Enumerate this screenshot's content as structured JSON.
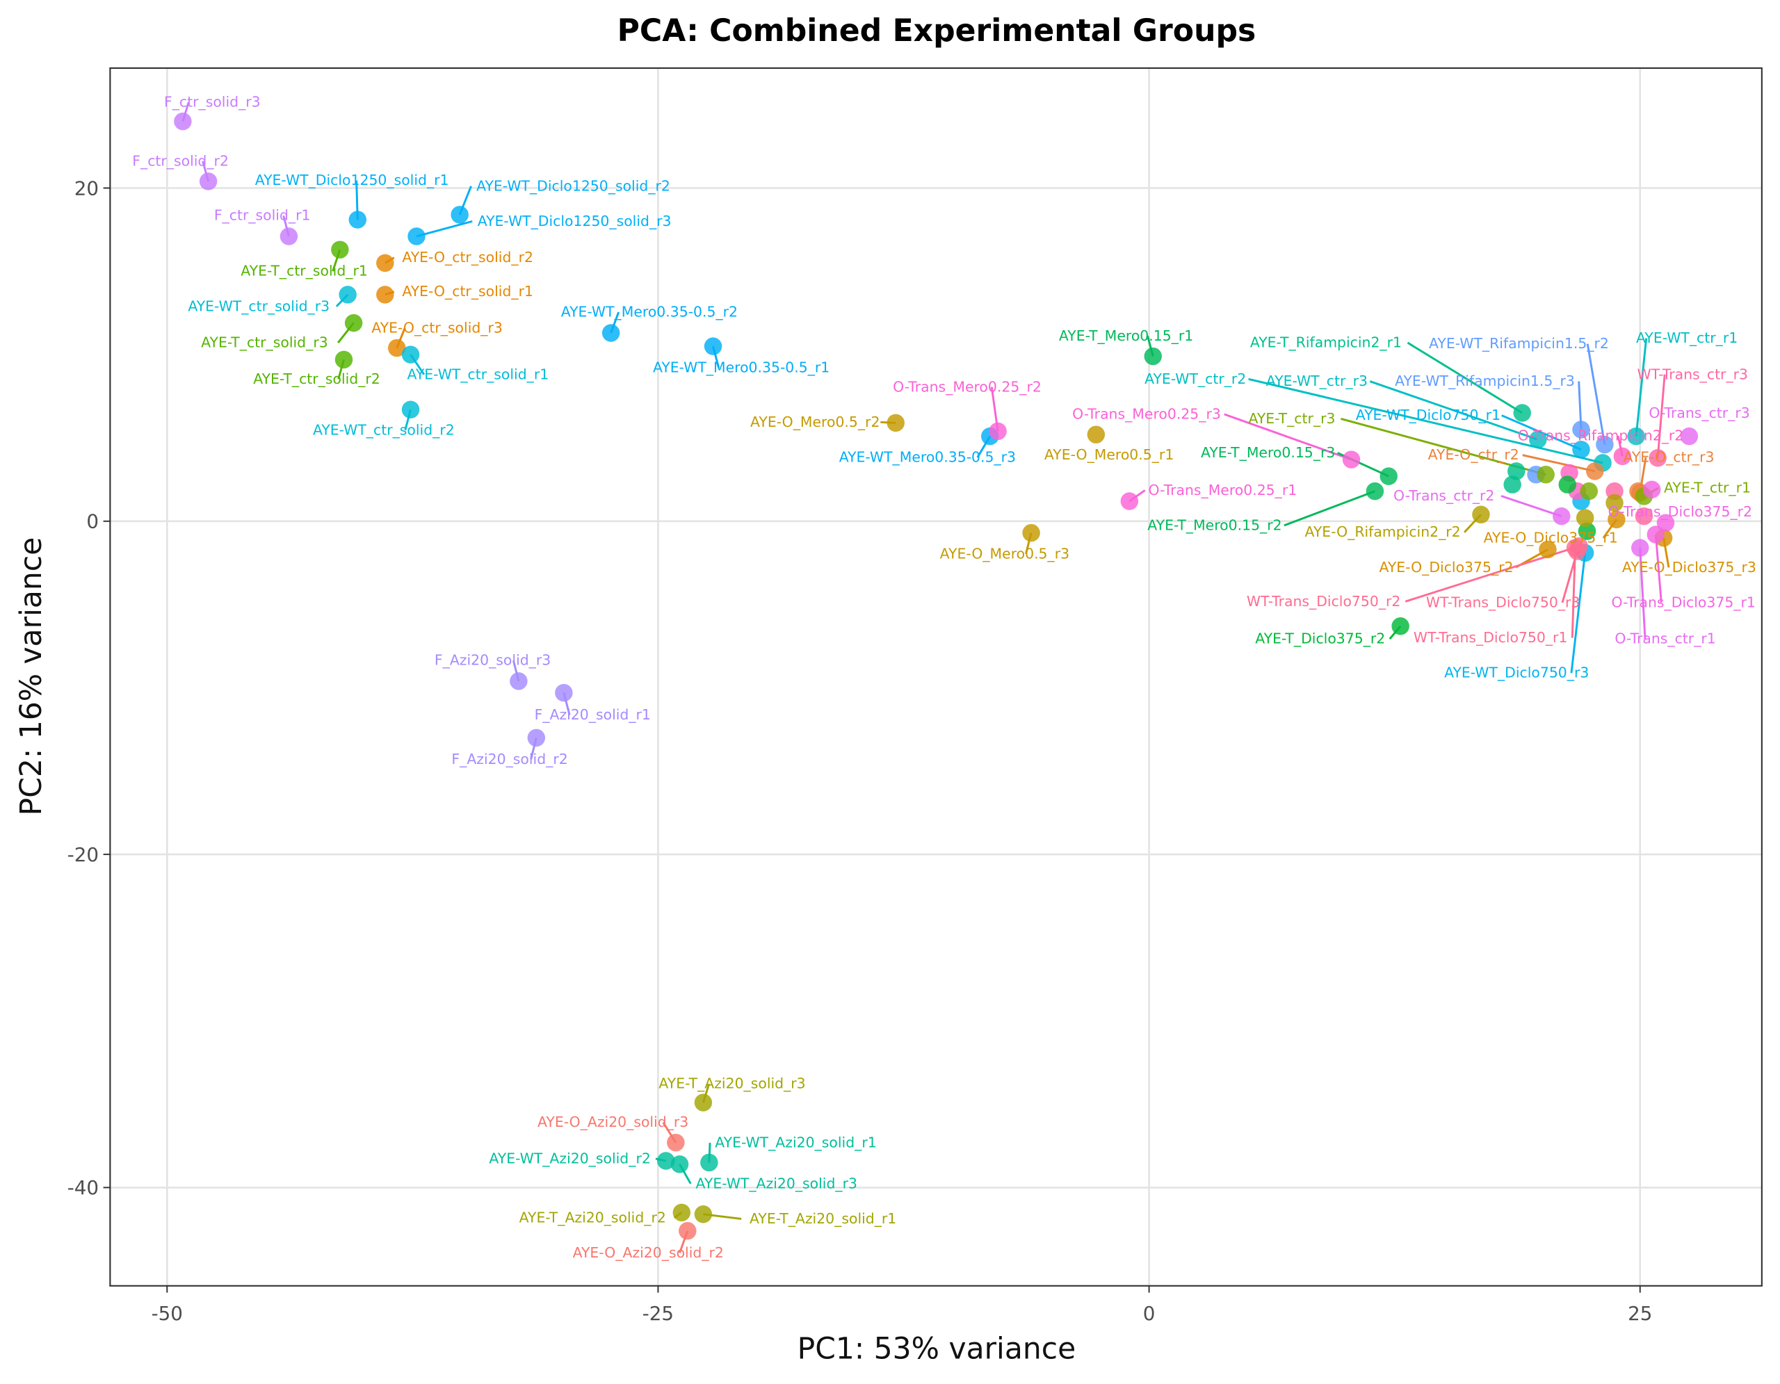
{
  "chart_data": {
    "type": "scatter",
    "title": "PCA: Combined Experimental Groups",
    "xlabel": "PC1: 53% variance",
    "ylabel": "PC2: 16% variance",
    "xlim": [
      -52.9,
      31.2
    ],
    "ylim": [
      -45.9,
      27.2
    ],
    "xticks": [
      -50,
      -25,
      0,
      25
    ],
    "xtick_labels": [
      "-50",
      "-25",
      "0",
      "25"
    ],
    "yticks": [
      20,
      0,
      -20,
      -40
    ],
    "ytick_labels": [
      "20",
      "0",
      "-20",
      "-40"
    ],
    "grid": true,
    "legend": "none",
    "points": [
      {
        "label": "F_ctr_solid_r3",
        "x": -49.2,
        "y": 24.0,
        "color": "#c77cff"
      },
      {
        "label": "F_ctr_solid_r2",
        "x": -47.9,
        "y": 20.4,
        "color": "#c77cff"
      },
      {
        "label": "F_ctr_solid_r1",
        "x": -43.8,
        "y": 17.1,
        "color": "#c77cff"
      },
      {
        "label": "AYE-WT_Diclo1250_solid_r1",
        "x": -40.3,
        "y": 18.1,
        "color": "#00b0f6"
      },
      {
        "label": "AYE-WT_Diclo1250_solid_r2",
        "x": -35.1,
        "y": 18.4,
        "color": "#00b0f6"
      },
      {
        "label": "AYE-WT_Diclo1250_solid_r3",
        "x": -37.3,
        "y": 17.1,
        "color": "#00b0f6"
      },
      {
        "label": "AYE-T_ctr_solid_r1",
        "x": -41.2,
        "y": 16.3,
        "color": "#53b400"
      },
      {
        "label": "AYE-T_ctr_solid_r3",
        "x": -40.5,
        "y": 11.9,
        "color": "#53b400"
      },
      {
        "label": "AYE-T_ctr_solid_r2",
        "x": -41.0,
        "y": 9.7,
        "color": "#53b400"
      },
      {
        "label": "AYE-O_ctr_solid_r2",
        "x": -38.9,
        "y": 15.5,
        "color": "#e58700"
      },
      {
        "label": "AYE-O_ctr_solid_r1",
        "x": -38.9,
        "y": 13.6,
        "color": "#e58700"
      },
      {
        "label": "AYE-O_ctr_solid_r3",
        "x": -38.3,
        "y": 10.4,
        "color": "#e58700"
      },
      {
        "label": "AYE-WT_ctr_solid_r3",
        "x": -40.8,
        "y": 13.6,
        "color": "#00bcd8"
      },
      {
        "label": "AYE-WT_ctr_solid_r1",
        "x": -37.6,
        "y": 10.0,
        "color": "#00bcd8"
      },
      {
        "label": "AYE-WT_ctr_solid_r2",
        "x": -37.6,
        "y": 6.7,
        "color": "#00bcd8"
      },
      {
        "label": "AYE-WT_Mero0.35-0.5_r2",
        "x": -27.4,
        "y": 11.3,
        "color": "#00aef7"
      },
      {
        "label": "AYE-WT_Mero0.35-0.5_r1",
        "x": -22.2,
        "y": 10.5,
        "color": "#00aef7"
      },
      {
        "label": "AYE-WT_Mero0.35-0.5_r3",
        "x": -8.1,
        "y": 5.1,
        "color": "#00aef7"
      },
      {
        "label": "AYE-O_Mero0.5_r2",
        "x": -12.9,
        "y": 5.9,
        "color": "#c49a00"
      },
      {
        "label": "AYE-O_Mero0.5_r1",
        "x": -2.7,
        "y": 5.2,
        "color": "#c49a00"
      },
      {
        "label": "AYE-O_Mero0.5_r3",
        "x": -6.0,
        "y": -0.7,
        "color": "#c49a00"
      },
      {
        "label": "O-Trans_Mero0.25_r2",
        "x": -7.7,
        "y": 5.4,
        "color": "#fb61d7"
      },
      {
        "label": "O-Trans_Mero0.25_r3",
        "x": 10.3,
        "y": 3.7,
        "color": "#fb61d7"
      },
      {
        "label": "O-Trans_Mero0.25_r1",
        "x": -1.0,
        "y": 1.2,
        "color": "#fb61d7"
      },
      {
        "label": "AYE-T_Mero0.15_r1",
        "x": 0.2,
        "y": 9.9,
        "color": "#00b95a"
      },
      {
        "label": "AYE-T_Mero0.15_r3",
        "x": 12.2,
        "y": 2.7,
        "color": "#00b95a"
      },
      {
        "label": "AYE-T_Mero0.15_r2",
        "x": 11.5,
        "y": 1.8,
        "color": "#00b95a"
      },
      {
        "label": "F_Azi20_solid_r3",
        "x": -32.1,
        "y": -9.6,
        "color": "#a58aff"
      },
      {
        "label": "F_Azi20_solid_r1",
        "x": -29.8,
        "y": -10.3,
        "color": "#a58aff"
      },
      {
        "label": "F_Azi20_solid_r2",
        "x": -31.2,
        "y": -13.0,
        "color": "#a58aff"
      },
      {
        "label": "AYE-T_Rifampicin2_r1",
        "x": 19.0,
        "y": 6.5,
        "color": "#00c08b"
      },
      {
        "label": "",
        "x": 18.7,
        "y": 3.0,
        "color": "#00c08b"
      },
      {
        "label": "",
        "x": 18.5,
        "y": 2.2,
        "color": "#00c08b"
      },
      {
        "label": "AYE-WT_Rifampicin1.5_r2",
        "x": 23.2,
        "y": 4.6,
        "color": "#619cff"
      },
      {
        "label": "AYE-WT_Rifampicin1.5_r3",
        "x": 22.0,
        "y": 5.5,
        "color": "#619cff"
      },
      {
        "label": "",
        "x": 19.7,
        "y": 2.8,
        "color": "#619cff"
      },
      {
        "label": "AYE-WT_ctr_r1",
        "x": 24.8,
        "y": 5.1,
        "color": "#00bfc4"
      },
      {
        "label": "AYE-WT_ctr_r2",
        "x": 23.1,
        "y": 3.5,
        "color": "#00bfc4"
      },
      {
        "label": "AYE-WT_ctr_r3",
        "x": 19.8,
        "y": 4.9,
        "color": "#00bfc4"
      },
      {
        "label": "AYE-WT_Diclo750_r1",
        "x": 22.0,
        "y": 4.3,
        "color": "#00b4ef"
      },
      {
        "label": "",
        "x": 22.0,
        "y": 1.2,
        "color": "#00b4ef"
      },
      {
        "label": "AYE-WT_Diclo750_r3",
        "x": 22.2,
        "y": -1.9,
        "color": "#00b4ef"
      },
      {
        "label": "O-Trans_Rifampicin2_r2",
        "x": 24.1,
        "y": 3.9,
        "color": "#ff61c3"
      },
      {
        "label": "",
        "x": 21.4,
        "y": 2.9,
        "color": "#ff61c3"
      },
      {
        "label": "",
        "x": 21.8,
        "y": 1.8,
        "color": "#ff61c3"
      },
      {
        "label": "WT-Trans_ctr_r3",
        "x": 25.9,
        "y": 3.8,
        "color": "#ff67a4"
      },
      {
        "label": "",
        "x": 23.7,
        "y": 1.8,
        "color": "#ff67a4"
      },
      {
        "label": "",
        "x": 25.2,
        "y": 0.3,
        "color": "#ff67a4"
      },
      {
        "label": "O-Trans_ctr_r3",
        "x": 27.5,
        "y": 5.1,
        "color": "#e76bf3"
      },
      {
        "label": "O-Trans_ctr_r2",
        "x": 21.0,
        "y": 0.3,
        "color": "#e76bf3"
      },
      {
        "label": "O-Trans_ctr_r1",
        "x": 25.0,
        "y": -1.6,
        "color": "#e76bf3"
      },
      {
        "label": "AYE-O_ctr_r2",
        "x": 22.7,
        "y": 3.0,
        "color": "#ec8239"
      },
      {
        "label": "AYE-O_ctr_r3",
        "x": 25.0,
        "y": 1.7,
        "color": "#ec8239"
      },
      {
        "label": "",
        "x": 24.9,
        "y": 1.8,
        "color": "#ec8239"
      },
      {
        "label": "AYE-T_ctr_r3",
        "x": 20.2,
        "y": 2.8,
        "color": "#7cae00"
      },
      {
        "label": "",
        "x": 22.4,
        "y": 1.8,
        "color": "#7cae00"
      },
      {
        "label": "AYE-T_ctr_r1",
        "x": 25.2,
        "y": 1.5,
        "color": "#7cae00"
      },
      {
        "label": "",
        "x": 21.3,
        "y": 2.2,
        "color": "#00ba38"
      },
      {
        "label": "AYE-T_Diclo375_r2",
        "x": 12.8,
        "y": -6.3,
        "color": "#00ba38"
      },
      {
        "label": "",
        "x": 22.3,
        "y": -0.6,
        "color": "#00ba38"
      },
      {
        "label": "AYE-O_Rifampicin2_r2",
        "x": 16.9,
        "y": 0.4,
        "color": "#b3a000"
      },
      {
        "label": "",
        "x": 22.2,
        "y": 0.2,
        "color": "#b3a000"
      },
      {
        "label": "",
        "x": 23.7,
        "y": 1.1,
        "color": "#b3a000"
      },
      {
        "label": "AYE-O_Diclo375_r1",
        "x": 23.8,
        "y": 0.1,
        "color": "#d89000"
      },
      {
        "label": "AYE-O_Diclo375_r2",
        "x": 20.3,
        "y": -1.7,
        "color": "#d89000"
      },
      {
        "label": "AYE-O_Diclo375_r3",
        "x": 26.2,
        "y": -1.0,
        "color": "#d89000"
      },
      {
        "label": "WT-Trans_Diclo750_r1",
        "x": 21.7,
        "y": -1.6,
        "color": "#ff6c91"
      },
      {
        "label": "WT-Trans_Diclo750_r2",
        "x": 21.9,
        "y": -1.5,
        "color": "#ff6c91"
      },
      {
        "label": "WT-Trans_Diclo750_r3",
        "x": 21.8,
        "y": -1.8,
        "color": "#ff6c91"
      },
      {
        "label": "O-Trans_Diclo375_r2",
        "x": 26.3,
        "y": -0.1,
        "color": "#f564e3"
      },
      {
        "label": "O-Trans_Diclo375_r1",
        "x": 25.8,
        "y": -0.8,
        "color": "#f564e3"
      },
      {
        "label": "",
        "x": 25.6,
        "y": 1.9,
        "color": "#f564e3"
      },
      {
        "label": "AYE-T_Azi20_solid_r3",
        "x": -22.7,
        "y": -34.9,
        "color": "#a3a500"
      },
      {
        "label": "AYE-T_Azi20_solid_r2",
        "x": -23.8,
        "y": -41.5,
        "color": "#a3a500"
      },
      {
        "label": "AYE-T_Azi20_solid_r1",
        "x": -22.7,
        "y": -41.6,
        "color": "#a3a500"
      },
      {
        "label": "AYE-O_Azi20_solid_r3",
        "x": -24.1,
        "y": -37.3,
        "color": "#f8766d"
      },
      {
        "label": "AYE-O_Azi20_solid_r2",
        "x": -23.5,
        "y": -42.6,
        "color": "#f8766d"
      },
      {
        "label": "AYE-WT_Azi20_solid_r2",
        "x": -24.6,
        "y": -38.4,
        "color": "#00bf9c"
      },
      {
        "label": "AYE-WT_Azi20_solid_r3",
        "x": -23.9,
        "y": -38.6,
        "color": "#00bf9c"
      },
      {
        "label": "AYE-WT_Azi20_solid_r1",
        "x": -22.4,
        "y": -38.5,
        "color": "#00bf9c"
      }
    ]
  }
}
